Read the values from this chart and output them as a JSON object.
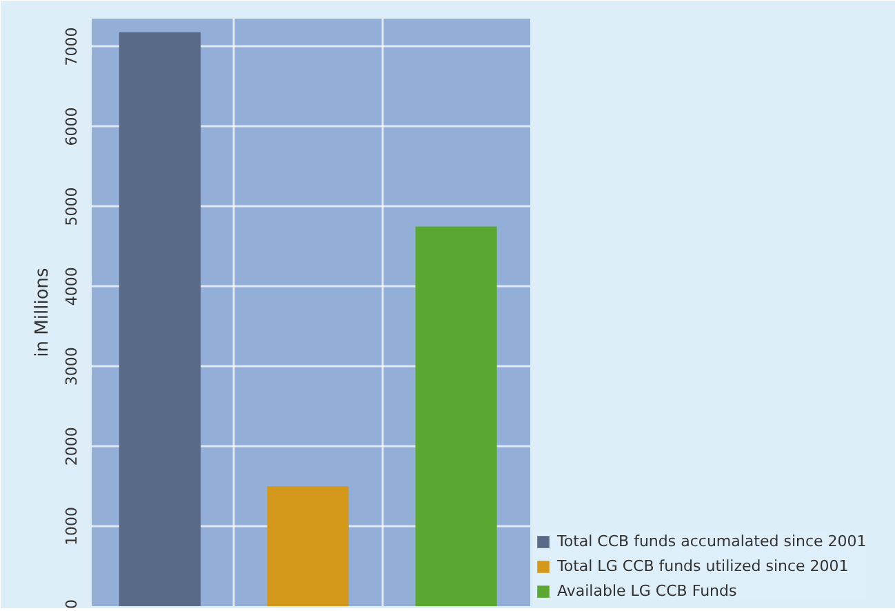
{
  "chart_data": {
    "type": "bar",
    "ylabel": "in Millions",
    "categories": [
      null,
      null,
      null
    ],
    "series": [
      {
        "name": "Total CCB funds accumalated since 2001",
        "color": "#596a88",
        "values": [
          7180,
          null,
          null
        ]
      },
      {
        "name": "Total LG CCB funds utilized since 2001",
        "color": "#d4991a",
        "values": [
          null,
          1500,
          null
        ]
      },
      {
        "name": "Available LG CCB Funds",
        "color": "#5aa832",
        "values": [
          null,
          null,
          4750
        ]
      }
    ],
    "ylim": [
      0,
      7350
    ],
    "yticks": [
      0,
      1000,
      2000,
      3000,
      4000,
      5000,
      6000,
      7000
    ],
    "grid": true,
    "legend": "right",
    "tick_labels": "y"
  }
}
